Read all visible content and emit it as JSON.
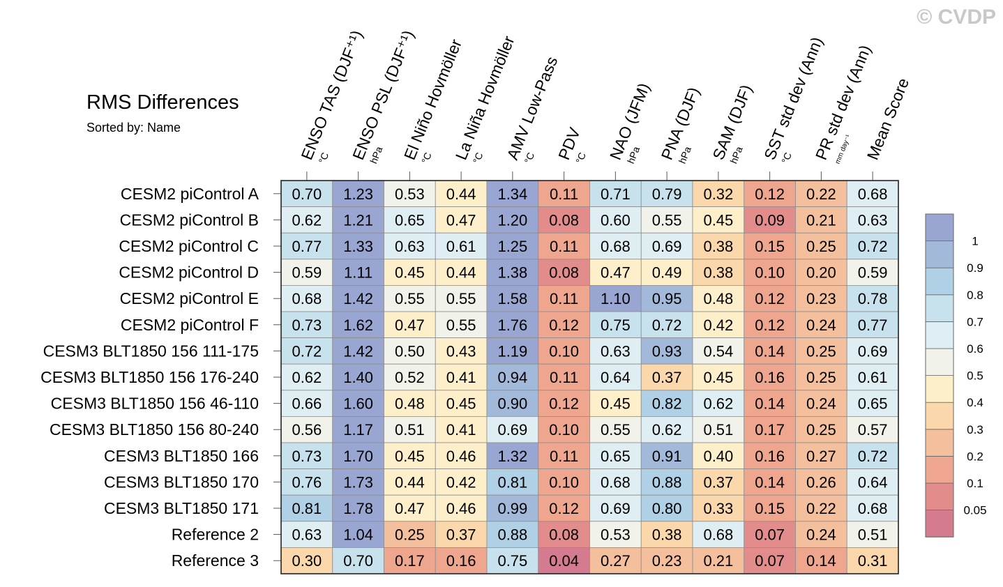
{
  "watermark": "© CVDP",
  "chart_data": {
    "type": "heatmap",
    "title": "RMS Differences",
    "subtitle": "Sorted by: Name",
    "columns": [
      {
        "label": "ENSO TAS (DJF⁺¹)",
        "unit": "°C"
      },
      {
        "label": "ENSO PSL (DJF⁺¹)",
        "unit": "hPa"
      },
      {
        "label": "El Niño Hovmöller",
        "unit": "°C"
      },
      {
        "label": "La Niña Hovmöller",
        "unit": "°C"
      },
      {
        "label": "AMV Low-Pass",
        "unit": "°C"
      },
      {
        "label": "PDV",
        "unit": "°C"
      },
      {
        "label": "NAO (JFM)",
        "unit": "hPa"
      },
      {
        "label": "PNA (DJF)",
        "unit": "hPa"
      },
      {
        "label": "SAM (DJF)",
        "unit": "hPa"
      },
      {
        "label": "SST std dev (Ann)",
        "unit": "°C"
      },
      {
        "label": "PR std dev (Ann)",
        "unit": "mm day⁻¹"
      },
      {
        "label": "Mean Score",
        "unit": ""
      }
    ],
    "rows": [
      "CESM2 piControl A",
      "CESM2 piControl B",
      "CESM2 piControl C",
      "CESM2 piControl D",
      "CESM2 piControl E",
      "CESM2 piControl F",
      "CESM3 BLT1850 156 111-175",
      "CESM3 BLT1850 156 176-240",
      "CESM3 BLT1850 156 46-110",
      "CESM3 BLT1850 156 80-240",
      "CESM3 BLT1850 166",
      "CESM3 BLT1850 170",
      "CESM3 BLT1850 171",
      "Reference 2",
      "Reference 3"
    ],
    "values": [
      [
        "0.70",
        "1.23",
        "0.53",
        "0.44",
        "1.34",
        "0.11",
        "0.71",
        "0.79",
        "0.32",
        "0.12",
        "0.22",
        "0.68"
      ],
      [
        "0.62",
        "1.21",
        "0.65",
        "0.47",
        "1.20",
        "0.08",
        "0.60",
        "0.55",
        "0.45",
        "0.09",
        "0.21",
        "0.63"
      ],
      [
        "0.77",
        "1.33",
        "0.63",
        "0.61",
        "1.25",
        "0.11",
        "0.68",
        "0.69",
        "0.38",
        "0.15",
        "0.25",
        "0.72"
      ],
      [
        "0.59",
        "1.11",
        "0.45",
        "0.44",
        "1.38",
        "0.08",
        "0.47",
        "0.49",
        "0.38",
        "0.10",
        "0.20",
        "0.59"
      ],
      [
        "0.68",
        "1.42",
        "0.55",
        "0.55",
        "1.58",
        "0.11",
        "1.10",
        "0.95",
        "0.48",
        "0.12",
        "0.23",
        "0.78"
      ],
      [
        "0.73",
        "1.62",
        "0.47",
        "0.55",
        "1.76",
        "0.12",
        "0.75",
        "0.72",
        "0.42",
        "0.12",
        "0.24",
        "0.77"
      ],
      [
        "0.72",
        "1.42",
        "0.50",
        "0.43",
        "1.19",
        "0.10",
        "0.63",
        "0.93",
        "0.54",
        "0.14",
        "0.25",
        "0.69"
      ],
      [
        "0.62",
        "1.40",
        "0.52",
        "0.41",
        "0.94",
        "0.11",
        "0.64",
        "0.37",
        "0.45",
        "0.16",
        "0.25",
        "0.61"
      ],
      [
        "0.66",
        "1.60",
        "0.48",
        "0.45",
        "0.90",
        "0.12",
        "0.45",
        "0.82",
        "0.62",
        "0.14",
        "0.24",
        "0.65"
      ],
      [
        "0.56",
        "1.17",
        "0.51",
        "0.41",
        "0.69",
        "0.10",
        "0.55",
        "0.62",
        "0.51",
        "0.17",
        "0.25",
        "0.57"
      ],
      [
        "0.73",
        "1.70",
        "0.45",
        "0.46",
        "1.32",
        "0.11",
        "0.65",
        "0.91",
        "0.40",
        "0.16",
        "0.27",
        "0.72"
      ],
      [
        "0.76",
        "1.73",
        "0.44",
        "0.42",
        "0.81",
        "0.10",
        "0.68",
        "0.88",
        "0.37",
        "0.14",
        "0.26",
        "0.64"
      ],
      [
        "0.81",
        "1.78",
        "0.47",
        "0.46",
        "0.99",
        "0.12",
        "0.69",
        "0.80",
        "0.33",
        "0.15",
        "0.22",
        "0.68"
      ],
      [
        "0.63",
        "1.04",
        "0.25",
        "0.37",
        "0.88",
        "0.08",
        "0.53",
        "0.38",
        "0.68",
        "0.07",
        "0.24",
        "0.51"
      ],
      [
        "0.30",
        "0.70",
        "0.17",
        "0.16",
        "0.75",
        "0.04",
        "0.27",
        "0.23",
        "0.21",
        "0.07",
        "0.14",
        "0.31"
      ]
    ],
    "colorbar": {
      "levels": [
        0.05,
        0.1,
        0.2,
        0.3,
        0.4,
        0.5,
        0.6,
        0.7,
        0.8,
        0.9,
        1
      ],
      "tick_labels": [
        "0.05",
        "0.1",
        "0.2",
        "0.3",
        "0.4",
        "0.5",
        "0.6",
        "0.7",
        "0.8",
        "0.9",
        "1"
      ],
      "colors": [
        "#d47b8f",
        "#e28d8c",
        "#eea68f",
        "#f4bf9d",
        "#fad8ac",
        "#fdefca",
        "#f1f2e9",
        "#dfeef3",
        "#c7e1ed",
        "#b0d0e5",
        "#a2b9da",
        "#99a6d1"
      ]
    }
  }
}
